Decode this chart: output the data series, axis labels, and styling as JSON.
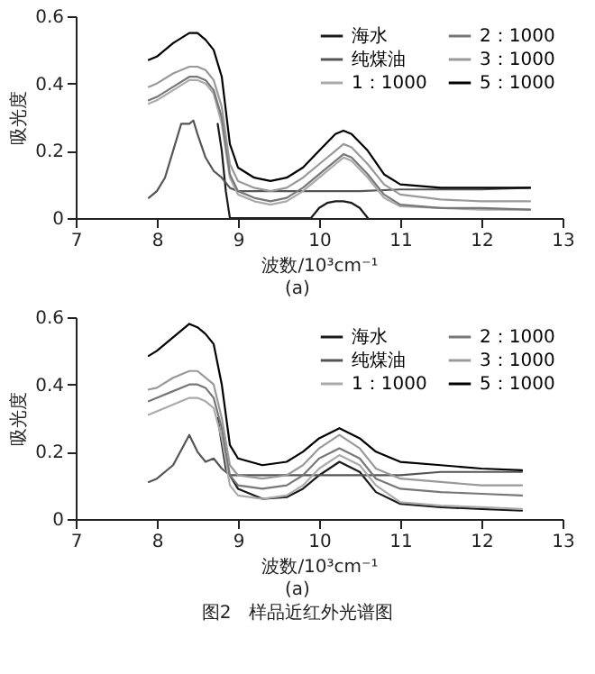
{
  "chart_data": [
    {
      "type": "line",
      "xlabel": "波数/10³cm⁻¹",
      "ylabel": "吸光度",
      "xlim": [
        7,
        13
      ],
      "ylim": [
        0,
        0.6
      ],
      "xticks": [
        7,
        8,
        9,
        10,
        11,
        12,
        13
      ],
      "yticks": [
        0,
        0.2,
        0.4,
        0.6
      ],
      "legend": "top right",
      "line_style": "solid",
      "annotations": [
        "(a)"
      ],
      "series": [
        {
          "name": "海水",
          "color": "#1a1a1a",
          "x": [
            8.75,
            8.8,
            8.85,
            8.9,
            9.5,
            9.9,
            10.0,
            10.1,
            10.2,
            10.3,
            10.4,
            10.5,
            10.6
          ],
          "values": [
            0.28,
            0.2,
            0.08,
            0,
            0,
            0,
            0.03,
            0.045,
            0.05,
            0.05,
            0.045,
            0.03,
            0
          ]
        },
        {
          "name": "纯煤油",
          "color": "#555555",
          "x": [
            7.9,
            8.0,
            8.1,
            8.2,
            8.3,
            8.4,
            8.45,
            8.5,
            8.6,
            8.7,
            8.8,
            8.9,
            9.0,
            9.5,
            10.0,
            10.5,
            11.0,
            11.5,
            12.0,
            12.6
          ],
          "values": [
            0.06,
            0.08,
            0.12,
            0.2,
            0.28,
            0.28,
            0.29,
            0.25,
            0.18,
            0.14,
            0.12,
            0.09,
            0.08,
            0.08,
            0.08,
            0.08,
            0.085,
            0.085,
            0.085,
            0.09
          ]
        },
        {
          "name": "1：1000",
          "color": "#aaaaaa",
          "x": [
            7.9,
            8.0,
            8.2,
            8.4,
            8.5,
            8.6,
            8.7,
            8.8,
            8.9,
            9.0,
            9.2,
            9.4,
            9.6,
            9.8,
            10.0,
            10.2,
            10.3,
            10.4,
            10.6,
            10.8,
            11.0,
            11.5,
            12.0,
            12.6
          ],
          "values": [
            0.34,
            0.35,
            0.38,
            0.41,
            0.41,
            0.4,
            0.37,
            0.28,
            0.12,
            0.07,
            0.05,
            0.04,
            0.05,
            0.08,
            0.12,
            0.16,
            0.18,
            0.17,
            0.12,
            0.06,
            0.035,
            0.03,
            0.025,
            0.025
          ]
        },
        {
          "name": "2：1000",
          "color": "#777777",
          "x": [
            7.9,
            8.0,
            8.2,
            8.4,
            8.5,
            8.6,
            8.7,
            8.8,
            8.9,
            9.0,
            9.2,
            9.4,
            9.6,
            9.8,
            10.0,
            10.2,
            10.3,
            10.4,
            10.6,
            10.8,
            11.0,
            11.5,
            12.0,
            12.6
          ],
          "values": [
            0.35,
            0.36,
            0.39,
            0.42,
            0.42,
            0.41,
            0.38,
            0.3,
            0.13,
            0.08,
            0.06,
            0.05,
            0.06,
            0.09,
            0.13,
            0.17,
            0.19,
            0.18,
            0.13,
            0.07,
            0.04,
            0.03,
            0.03,
            0.025
          ]
        },
        {
          "name": "3：1000",
          "color": "#999999",
          "x": [
            7.9,
            8.0,
            8.2,
            8.4,
            8.5,
            8.6,
            8.7,
            8.8,
            8.9,
            9.0,
            9.2,
            9.4,
            9.6,
            9.8,
            10.0,
            10.2,
            10.3,
            10.4,
            10.6,
            10.8,
            11.0,
            11.5,
            12.0,
            12.6
          ],
          "values": [
            0.39,
            0.4,
            0.43,
            0.45,
            0.45,
            0.44,
            0.41,
            0.33,
            0.16,
            0.11,
            0.09,
            0.08,
            0.09,
            0.12,
            0.16,
            0.2,
            0.22,
            0.21,
            0.16,
            0.1,
            0.07,
            0.055,
            0.05,
            0.05
          ]
        },
        {
          "name": "5：1000",
          "color": "#000000",
          "x": [
            7.9,
            8.0,
            8.2,
            8.4,
            8.5,
            8.6,
            8.7,
            8.8,
            8.9,
            9.0,
            9.2,
            9.4,
            9.6,
            9.8,
            10.0,
            10.2,
            10.3,
            10.4,
            10.6,
            10.8,
            11.0,
            11.5,
            12.0,
            12.6
          ],
          "values": [
            0.47,
            0.48,
            0.52,
            0.55,
            0.55,
            0.53,
            0.5,
            0.42,
            0.22,
            0.15,
            0.12,
            0.11,
            0.12,
            0.15,
            0.2,
            0.25,
            0.26,
            0.25,
            0.2,
            0.13,
            0.1,
            0.09,
            0.09,
            0.09
          ]
        }
      ]
    },
    {
      "type": "line",
      "xlabel": "波数/10³cm⁻¹",
      "ylabel": "吸光度",
      "xlim": [
        7,
        13
      ],
      "ylim": [
        0,
        0.6
      ],
      "xticks": [
        7,
        8,
        9,
        10,
        11,
        12,
        13
      ],
      "yticks": [
        0,
        0.2,
        0.4,
        0.6
      ],
      "legend": "top right",
      "line_style": "solid",
      "annotations": [
        "(a)",
        "图2　样品近红外光谱图"
      ],
      "series": [
        {
          "name": "海水",
          "color": "#1a1a1a",
          "x": [
            8.75,
            8.85,
            9.0,
            9.3,
            9.6,
            9.8,
            10.0,
            10.25,
            10.5,
            10.7,
            11.0,
            11.5,
            12.0,
            12.5
          ],
          "values": [
            0.3,
            0.15,
            0.09,
            0.06,
            0.065,
            0.09,
            0.13,
            0.17,
            0.14,
            0.08,
            0.045,
            0.035,
            0.03,
            0.025
          ]
        },
        {
          "name": "纯煤油",
          "color": "#555555",
          "x": [
            7.9,
            8.0,
            8.2,
            8.4,
            8.5,
            8.6,
            8.7,
            8.8,
            8.9,
            9.0,
            10.0,
            11.0,
            11.5,
            12.0,
            12.5
          ],
          "values": [
            0.11,
            0.12,
            0.16,
            0.25,
            0.2,
            0.17,
            0.18,
            0.15,
            0.13,
            0.13,
            0.13,
            0.13,
            0.14,
            0.14,
            0.14
          ]
        },
        {
          "name": "1：1000",
          "color": "#aaaaaa",
          "x": [
            7.9,
            8.0,
            8.2,
            8.4,
            8.5,
            8.6,
            8.7,
            8.8,
            8.9,
            9.0,
            9.3,
            9.6,
            9.8,
            10.0,
            10.25,
            10.5,
            10.7,
            11.0,
            11.5,
            12.0,
            12.5
          ],
          "values": [
            0.31,
            0.32,
            0.34,
            0.36,
            0.36,
            0.35,
            0.33,
            0.24,
            0.1,
            0.07,
            0.06,
            0.07,
            0.1,
            0.15,
            0.19,
            0.16,
            0.1,
            0.05,
            0.04,
            0.035,
            0.03
          ]
        },
        {
          "name": "2：1000",
          "color": "#777777",
          "x": [
            7.9,
            8.0,
            8.2,
            8.4,
            8.5,
            8.6,
            8.7,
            8.8,
            8.9,
            9.0,
            9.3,
            9.6,
            9.8,
            10.0,
            10.25,
            10.5,
            10.7,
            11.0,
            11.5,
            12.0,
            12.5
          ],
          "values": [
            0.35,
            0.36,
            0.38,
            0.4,
            0.4,
            0.39,
            0.36,
            0.27,
            0.13,
            0.1,
            0.09,
            0.1,
            0.13,
            0.18,
            0.21,
            0.18,
            0.12,
            0.09,
            0.08,
            0.075,
            0.07
          ]
        },
        {
          "name": "3：1000",
          "color": "#999999",
          "x": [
            7.9,
            8.0,
            8.2,
            8.4,
            8.5,
            8.6,
            8.7,
            8.8,
            8.9,
            9.0,
            9.3,
            9.6,
            9.8,
            10.0,
            10.25,
            10.5,
            10.7,
            11.0,
            11.5,
            12.0,
            12.5
          ],
          "values": [
            0.385,
            0.39,
            0.42,
            0.44,
            0.44,
            0.42,
            0.4,
            0.3,
            0.16,
            0.13,
            0.12,
            0.13,
            0.16,
            0.21,
            0.25,
            0.21,
            0.15,
            0.12,
            0.11,
            0.1,
            0.1
          ]
        },
        {
          "name": "5：1000",
          "color": "#000000",
          "x": [
            7.9,
            8.0,
            8.2,
            8.4,
            8.5,
            8.6,
            8.7,
            8.8,
            8.9,
            9.0,
            9.3,
            9.6,
            9.8,
            10.0,
            10.25,
            10.5,
            10.7,
            11.0,
            11.5,
            12.0,
            12.5
          ],
          "values": [
            0.485,
            0.5,
            0.54,
            0.58,
            0.57,
            0.55,
            0.52,
            0.4,
            0.22,
            0.18,
            0.16,
            0.17,
            0.2,
            0.24,
            0.27,
            0.24,
            0.2,
            0.17,
            0.16,
            0.15,
            0.145
          ]
        }
      ]
    }
  ]
}
